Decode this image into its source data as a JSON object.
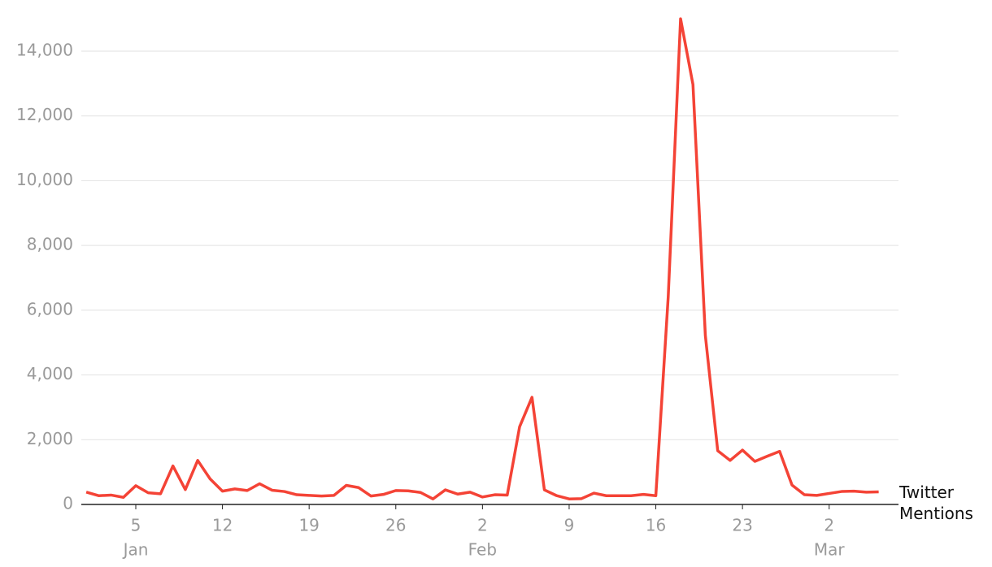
{
  "chart_data": {
    "type": "line",
    "x": [
      1,
      2,
      3,
      4,
      5,
      6,
      7,
      8,
      9,
      10,
      11,
      12,
      13,
      14,
      15,
      16,
      17,
      18,
      19,
      20,
      21,
      22,
      23,
      24,
      25,
      26,
      27,
      28,
      29,
      30,
      31,
      32,
      33,
      34,
      35,
      36,
      37,
      38,
      39,
      40,
      41,
      42,
      43,
      44,
      45,
      46,
      47,
      48,
      49,
      50,
      51,
      52,
      53,
      54,
      55,
      56,
      57,
      58,
      59,
      60,
      61,
      62,
      63,
      64,
      65
    ],
    "series": [
      {
        "name": "Twitter Mentions",
        "color": "#f44336",
        "values": [
          380,
          270,
          290,
          220,
          580,
          360,
          330,
          1190,
          460,
          1360,
          790,
          410,
          480,
          430,
          640,
          440,
          400,
          300,
          280,
          260,
          280,
          590,
          520,
          260,
          310,
          430,
          420,
          370,
          170,
          450,
          320,
          380,
          230,
          300,
          290,
          2400,
          3310,
          450,
          270,
          170,
          180,
          350,
          270,
          270,
          270,
          310,
          270,
          6400,
          15000,
          12970,
          5220,
          1660,
          1360,
          1680,
          1330,
          1490,
          1640,
          600,
          300,
          280,
          340,
          400,
          410,
          380,
          390
        ]
      }
    ],
    "xlim": [
      0.6,
      66.6
    ],
    "xticks": [
      {
        "value": 5,
        "label": "5"
      },
      {
        "value": 12,
        "label": "12"
      },
      {
        "value": 19,
        "label": "19"
      },
      {
        "value": 26,
        "label": "26"
      },
      {
        "value": 33,
        "label": "2"
      },
      {
        "value": 40,
        "label": "9"
      },
      {
        "value": 47,
        "label": "16"
      },
      {
        "value": 54,
        "label": "23"
      },
      {
        "value": 61,
        "label": "2"
      }
    ],
    "month_labels": [
      {
        "value": 5,
        "label": "Jan"
      },
      {
        "value": 33,
        "label": "Feb"
      },
      {
        "value": 61,
        "label": "Mar"
      }
    ],
    "ylim": [
      0,
      15580
    ],
    "yticks": [
      0,
      {
        "value": 2000,
        "label": "2,000"
      },
      {
        "value": 4000,
        "label": "4,000"
      },
      {
        "value": 6000,
        "label": "6,000"
      },
      {
        "value": 8000,
        "label": "8,000"
      },
      {
        "value": 10000,
        "label": "10,000"
      },
      {
        "value": 12000,
        "label": "12,000"
      },
      {
        "value": 14000,
        "label": "14,000"
      }
    ],
    "grid": true
  }
}
